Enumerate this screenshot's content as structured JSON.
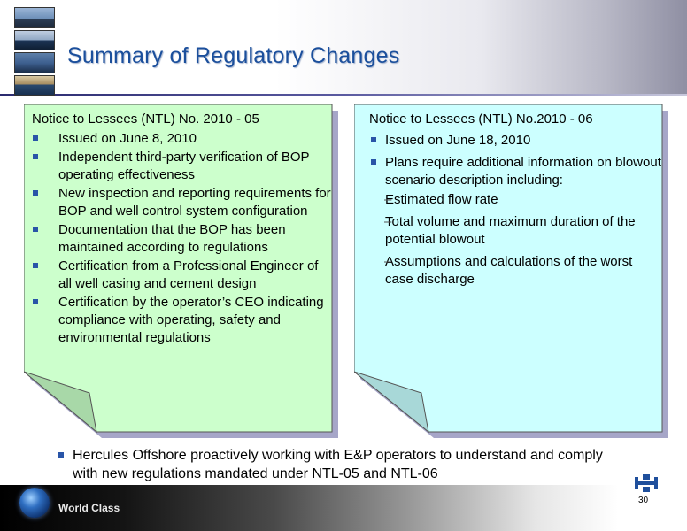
{
  "header": {
    "title": "Summary of Regulatory Changes",
    "photos": [
      "offshore-rig-photo",
      "rig-at-sea-photo",
      "rig-deck-photo",
      "jackup-rig-photo"
    ]
  },
  "notes": {
    "left": {
      "title": "Notice to Lessees (NTL) No. 2010 - 05",
      "fill": "#ccffcc",
      "bullets": [
        "Issued on June 8, 2010",
        "Independent third-party verification of BOP operating effectiveness",
        "New inspection and reporting requirements for BOP and well control system configuration",
        "Documentation that the BOP has been maintained according to regulations",
        "Certification from a Professional Engineer of all well casing and cement design",
        "Certification by the operator’s CEO indicating compliance with operating, safety and environmental regulations"
      ]
    },
    "right": {
      "title": "Notice to Lessees (NTL) No.2010 - 06",
      "fill": "#ccffff",
      "bullets": [
        "Issued on June 18, 2010",
        "Plans require additional information on blowout scenario description including:"
      ],
      "sub_bullets": [
        "Estimated flow rate",
        "Total volume and maximum duration of the potential blowout",
        "Assumptions and calculations of the worst case discharge"
      ]
    }
  },
  "bottom": {
    "text": "Hercules Offshore proactively working with E&P operators to understand and comply with new regulations mandated under NTL-05 and NTL-06"
  },
  "footer": {
    "tagline": "World Class",
    "page_number": "30"
  },
  "colors": {
    "title": "#1b4f9c",
    "bullet": "#2955a8",
    "note_shadow": "#a6a6c8"
  }
}
